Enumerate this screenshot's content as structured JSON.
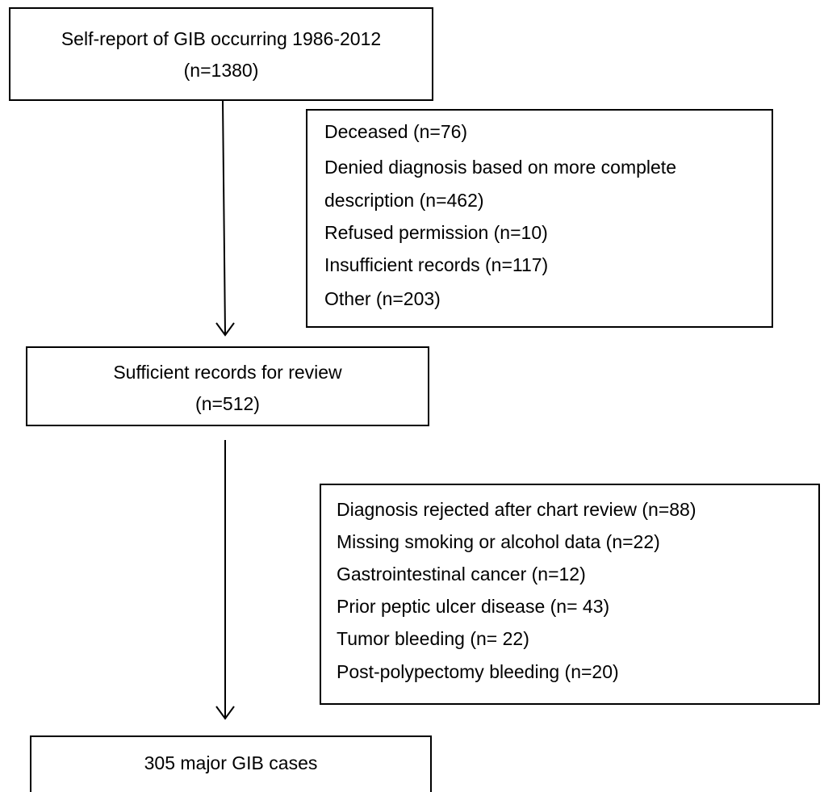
{
  "nodes": [
    {
      "lines": [
        "Self-report of GIB occurring 1986-2012",
        "(n=1380)"
      ]
    },
    {
      "lines": [
        "Deceased (n=76)",
        "Denied diagnosis based on more complete",
        "description (n=462)",
        "Refused permission (n=10)",
        "Insufficient records (n=117)",
        "Other (n=203)"
      ]
    },
    {
      "lines": [
        "Sufficient records for review",
        "(n=512)"
      ]
    },
    {
      "lines": [
        "Diagnosis rejected after chart review (n=88)",
        "Missing smoking or alcohol data (n=22)",
        "Gastrointestinal cancer (n=12)",
        "Prior peptic ulcer disease (n= 43)",
        "Tumor bleeding (n= 22)",
        "Post-polypectomy bleeding (n=20)"
      ]
    },
    {
      "lines": [
        "305 major GIB cases"
      ]
    }
  ]
}
